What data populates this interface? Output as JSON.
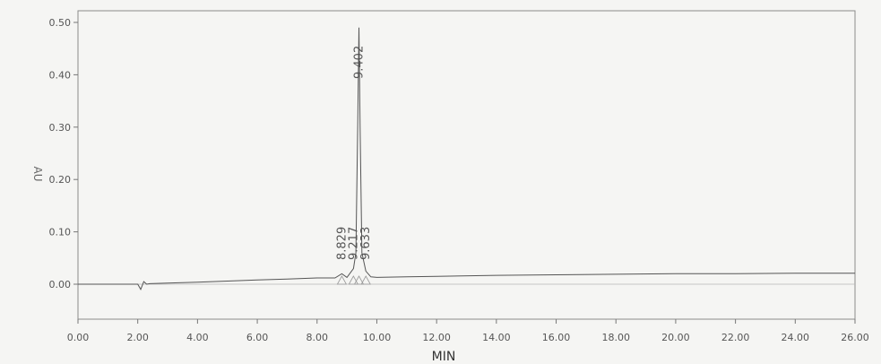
{
  "chart_data": {
    "type": "line",
    "xlabel": "MIN",
    "ylabel": "AU",
    "xlim": [
      0,
      26
    ],
    "ylim": [
      -0.07,
      0.52
    ],
    "x_ticks": [
      "0.00",
      "2.00",
      "4.00",
      "6.00",
      "8.00",
      "10.00",
      "12.00",
      "14.00",
      "16.00",
      "18.00",
      "20.00",
      "22.00",
      "24.00",
      "26.00"
    ],
    "y_ticks": [
      "0.00",
      "0.10",
      "0.20",
      "0.30",
      "0.40",
      "0.50"
    ],
    "grid": false,
    "series": [
      {
        "x": [
          0.0,
          1.0,
          2.0,
          2.1,
          2.2,
          2.3,
          2.4,
          3.0,
          4.0,
          5.0,
          6.0,
          7.0,
          8.0,
          8.6,
          8.83,
          9.0,
          9.217,
          9.3,
          9.36,
          9.402,
          9.44,
          9.5,
          9.633,
          9.8,
          10.0,
          11.0,
          12.0,
          14.0,
          16.0,
          18.0,
          20.0,
          22.0,
          24.0,
          26.0
        ],
        "y": [
          0.0,
          0.0,
          0.0,
          -0.01,
          0.005,
          0.0,
          0.001,
          0.002,
          0.004,
          0.006,
          0.008,
          0.01,
          0.012,
          0.012,
          0.02,
          0.013,
          0.03,
          0.06,
          0.3,
          0.49,
          0.3,
          0.06,
          0.025,
          0.014,
          0.013,
          0.014,
          0.015,
          0.017,
          0.018,
          0.019,
          0.02,
          0.02,
          0.021,
          0.021
        ]
      }
    ],
    "peak_labels": [
      {
        "x": 8.829,
        "label": "8.829"
      },
      {
        "x": 9.217,
        "label": "9.217"
      },
      {
        "x": 9.402,
        "label": "9.402"
      },
      {
        "x": 9.633,
        "label": "9.633"
      }
    ]
  }
}
